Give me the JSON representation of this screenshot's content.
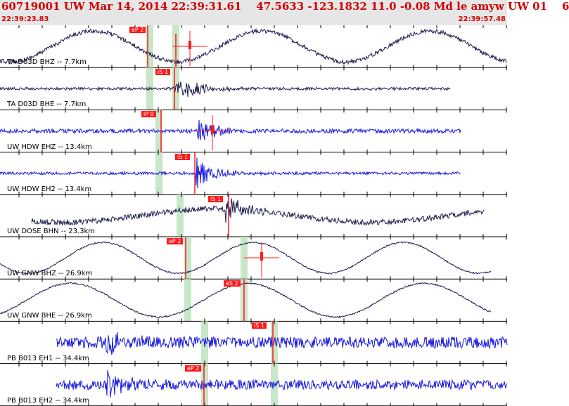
{
  "header": {
    "title": "60719001 UW Mar 14, 2014 22:39:31.61    47.5633 -123.1832 11.0 -0.08 Md le amyw UW 01    6",
    "time_start": "22:39:23.83",
    "time_end": "22:39:57.48"
  },
  "colors": {
    "header_bg": "#e6e6e6",
    "header_text": "#d40000",
    "trace_dark": "#1a1a4d",
    "trace_blue": "#1515e0",
    "pick_red": "#ff1a1a",
    "window_green": "#c8e6c8"
  },
  "channels": [
    {
      "label": "TA D03D BHZ -- 7.7km",
      "color": "blue-dark",
      "pick": "eP 2"
    },
    {
      "label": "TA D03D BHE -- 7.7km",
      "color": "blue-dark",
      "pick": "iS 1"
    },
    {
      "label": "UW HDW EHZ -- 13.4km",
      "color": "blue",
      "pick": "iP 0"
    },
    {
      "label": "UW HDW EH2 -- 13.4km",
      "color": "blue",
      "pick": "iS 1"
    },
    {
      "label": "UW DOSE BHN -- 23.3km",
      "color": "blue-dark",
      "pick": "iS 1"
    },
    {
      "label": "UW GNW BHZ -- 26.9km",
      "color": "blue-dark",
      "pick": "eP 2"
    },
    {
      "label": "UW GNW BHE -- 26.9km",
      "color": "blue-dark",
      "pick": "eS 2"
    },
    {
      "label": "PB B013 EH1 -- 34.4km",
      "color": "blue",
      "pick": "iS 1"
    },
    {
      "label": "PB B013 EH2 -- 34.4km",
      "color": "blue",
      "pick": "eP 2"
    }
  ]
}
